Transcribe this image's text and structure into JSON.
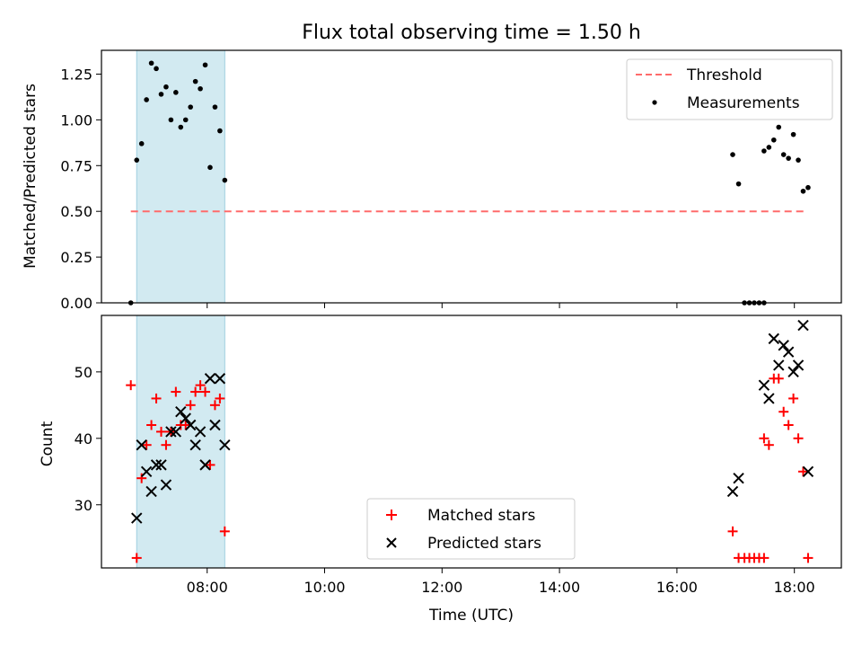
{
  "title": "Flux total observing time = 1.50 h",
  "xlabel": "Time (UTC)",
  "x_ticks": [
    "08:00",
    "10:00",
    "12:00",
    "14:00",
    "16:00",
    "18:00"
  ],
  "colors": {
    "highlight": "#add8e6",
    "threshold": "#ff6b6b",
    "measurement": "#000000",
    "matched": "#ff0000",
    "predicted": "#000000"
  },
  "chart_data": [
    {
      "type": "scatter",
      "ylabel": "Matched/Predicted stars",
      "xlim": [
        "06:12",
        "18:48"
      ],
      "ylim": [
        0,
        1.38
      ],
      "y_ticks": [
        "0.00",
        "0.25",
        "0.50",
        "0.75",
        "1.00",
        "1.25"
      ],
      "highlight_span": [
        "06:48",
        "08:18"
      ],
      "threshold": {
        "name": "Threshold",
        "value": 0.5,
        "x_range": [
          "06:42",
          "18:12"
        ]
      },
      "legend": {
        "position": "upper-right",
        "entries": [
          "Threshold",
          "Measurements"
        ]
      },
      "series": [
        {
          "name": "Measurements",
          "points": [
            [
              "06:42",
              0.0
            ],
            [
              "06:48",
              0.78
            ],
            [
              "06:53",
              0.87
            ],
            [
              "06:58",
              1.11
            ],
            [
              "07:03",
              1.31
            ],
            [
              "07:08",
              1.28
            ],
            [
              "07:13",
              1.14
            ],
            [
              "07:18",
              1.18
            ],
            [
              "07:23",
              1.0
            ],
            [
              "07:28",
              1.15
            ],
            [
              "07:33",
              0.96
            ],
            [
              "07:38",
              1.0
            ],
            [
              "07:43",
              1.07
            ],
            [
              "07:48",
              1.21
            ],
            [
              "07:53",
              1.17
            ],
            [
              "07:58",
              1.3
            ],
            [
              "08:03",
              0.74
            ],
            [
              "08:08",
              1.07
            ],
            [
              "08:13",
              0.94
            ],
            [
              "08:18",
              0.67
            ],
            [
              "16:57",
              0.81
            ],
            [
              "17:03",
              0.65
            ],
            [
              "17:09",
              0.0
            ],
            [
              "17:14",
              0.0
            ],
            [
              "17:19",
              0.0
            ],
            [
              "17:24",
              0.0
            ],
            [
              "17:29",
              0.0
            ],
            [
              "17:29",
              0.83
            ],
            [
              "17:34",
              0.85
            ],
            [
              "17:39",
              0.89
            ],
            [
              "17:44",
              0.96
            ],
            [
              "17:49",
              0.81
            ],
            [
              "17:54",
              0.79
            ],
            [
              "17:59",
              0.92
            ],
            [
              "18:04",
              0.78
            ],
            [
              "18:09",
              0.61
            ],
            [
              "18:14",
              0.63
            ]
          ]
        }
      ]
    },
    {
      "type": "scatter",
      "ylabel": "Count",
      "xlim": [
        "06:12",
        "18:48"
      ],
      "ylim": [
        20.5,
        58.5
      ],
      "y_ticks": [
        "30",
        "40",
        "50"
      ],
      "highlight_span": [
        "06:48",
        "08:18"
      ],
      "legend": {
        "position": "lower-center",
        "entries": [
          "Matched stars",
          "Predicted stars"
        ]
      },
      "series": [
        {
          "name": "Matched stars",
          "marker": "+",
          "points": [
            [
              "06:42",
              48
            ],
            [
              "06:48",
              22
            ],
            [
              "06:53",
              34
            ],
            [
              "06:58",
              39
            ],
            [
              "07:03",
              42
            ],
            [
              "07:08",
              46
            ],
            [
              "07:13",
              41
            ],
            [
              "07:18",
              39
            ],
            [
              "07:23",
              41
            ],
            [
              "07:28",
              47
            ],
            [
              "07:33",
              42
            ],
            [
              "07:38",
              42
            ],
            [
              "07:43",
              45
            ],
            [
              "07:48",
              47
            ],
            [
              "07:53",
              48
            ],
            [
              "07:58",
              47
            ],
            [
              "08:03",
              36
            ],
            [
              "08:08",
              45
            ],
            [
              "08:13",
              46
            ],
            [
              "08:18",
              26
            ],
            [
              "16:57",
              26
            ],
            [
              "17:03",
              22
            ],
            [
              "17:09",
              22
            ],
            [
              "17:14",
              22
            ],
            [
              "17:19",
              22
            ],
            [
              "17:24",
              22
            ],
            [
              "17:29",
              22
            ],
            [
              "17:29",
              40
            ],
            [
              "17:34",
              39
            ],
            [
              "17:39",
              49
            ],
            [
              "17:44",
              49
            ],
            [
              "17:49",
              44
            ],
            [
              "17:54",
              42
            ],
            [
              "17:59",
              46
            ],
            [
              "18:04",
              40
            ],
            [
              "18:09",
              35
            ],
            [
              "18:14",
              22
            ]
          ]
        },
        {
          "name": "Predicted stars",
          "marker": "x",
          "points": [
            [
              "06:48",
              28
            ],
            [
              "06:53",
              39
            ],
            [
              "06:58",
              35
            ],
            [
              "07:03",
              32
            ],
            [
              "07:08",
              36
            ],
            [
              "07:13",
              36
            ],
            [
              "07:18",
              33
            ],
            [
              "07:23",
              41
            ],
            [
              "07:28",
              41
            ],
            [
              "07:33",
              44
            ],
            [
              "07:38",
              43
            ],
            [
              "07:43",
              42
            ],
            [
              "07:48",
              39
            ],
            [
              "07:53",
              41
            ],
            [
              "07:58",
              36
            ],
            [
              "08:03",
              49
            ],
            [
              "08:08",
              42
            ],
            [
              "08:13",
              49
            ],
            [
              "08:18",
              39
            ],
            [
              "16:57",
              32
            ],
            [
              "17:03",
              34
            ],
            [
              "17:29",
              48
            ],
            [
              "17:34",
              46
            ],
            [
              "17:39",
              55
            ],
            [
              "17:44",
              51
            ],
            [
              "17:49",
              54
            ],
            [
              "17:54",
              53
            ],
            [
              "17:59",
              50
            ],
            [
              "18:04",
              51
            ],
            [
              "18:09",
              57
            ],
            [
              "18:14",
              35
            ]
          ]
        }
      ]
    }
  ]
}
